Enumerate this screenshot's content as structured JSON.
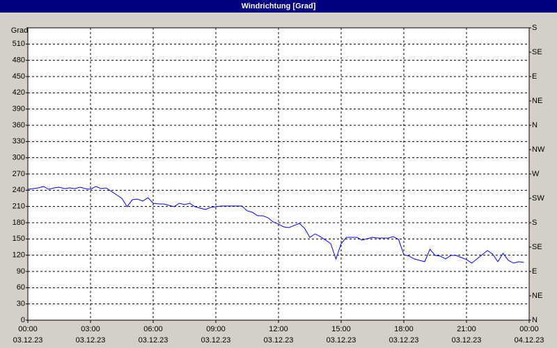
{
  "chart_data": {
    "type": "line",
    "title": "Windrichtung [Grad]",
    "ylabel": "Grad",
    "x": [
      0,
      0.25,
      0.5,
      0.75,
      1,
      1.25,
      1.5,
      1.75,
      2,
      2.25,
      2.5,
      2.75,
      3,
      3.25,
      3.5,
      3.75,
      4,
      4.25,
      4.5,
      4.75,
      5,
      5.25,
      5.5,
      5.75,
      6,
      6.25,
      6.5,
      6.75,
      7,
      7.25,
      7.5,
      7.75,
      8,
      8.25,
      8.5,
      8.75,
      9,
      9.25,
      9.5,
      9.75,
      10,
      10.25,
      10.5,
      10.75,
      11,
      11.25,
      11.5,
      11.75,
      12,
      12.25,
      12.5,
      12.75,
      13,
      13.25,
      13.5,
      13.75,
      14,
      14.25,
      14.5,
      14.75,
      15,
      15.25,
      15.5,
      15.75,
      16,
      16.25,
      16.5,
      16.75,
      17,
      17.25,
      17.5,
      17.75,
      18,
      18.25,
      18.5,
      18.75,
      19,
      19.25,
      19.5,
      19.75,
      20,
      20.25,
      20.5,
      20.75,
      21,
      21.25,
      21.5,
      21.75,
      22,
      22.25,
      22.5,
      22.75,
      23,
      23.25,
      23.5,
      23.75
    ],
    "values": [
      241.7,
      243,
      244.3,
      246.9,
      241.7,
      244.3,
      245.6,
      243,
      244.3,
      243,
      245.6,
      243,
      241.7,
      246.9,
      243,
      244.3,
      237.9,
      231.4,
      225,
      209.6,
      222.4,
      223.7,
      219.9,
      226.3,
      216,
      214.7,
      214.7,
      212.1,
      209.6,
      216,
      213.4,
      216,
      209.6,
      207,
      204.4,
      208.3,
      209.6,
      210.9,
      210.9,
      210.9,
      210.9,
      210.9,
      201.9,
      199.3,
      192.9,
      192.9,
      189,
      181.3,
      177.4,
      172.3,
      171,
      174.9,
      178.7,
      169.7,
      153,
      159.4,
      154.3,
      147.9,
      141.4,
      113.1,
      141.4,
      153,
      153,
      153,
      147.9,
      150.4,
      153,
      151.7,
      151.7,
      151.7,
      154.3,
      149.1,
      120.9,
      118.3,
      113.1,
      110.6,
      108,
      131.1,
      119.6,
      118.3,
      113.1,
      119.6,
      119.6,
      115.7,
      111.9,
      105.4,
      113.1,
      120.9,
      128.6,
      122.1,
      108,
      123.4,
      110.6,
      105.4,
      108,
      106.7
    ],
    "color": "#0000ff",
    "xlim": [
      0,
      24
    ],
    "xticks": [
      {
        "value": 0,
        "label": "00:00"
      },
      {
        "value": 3,
        "label": "03:00"
      },
      {
        "value": 6,
        "label": "06:00"
      },
      {
        "value": 9,
        "label": "09:00"
      },
      {
        "value": 12,
        "label": "12:00"
      },
      {
        "value": 15,
        "label": "15:00"
      },
      {
        "value": 18,
        "label": "18:00"
      },
      {
        "value": 21,
        "label": "21:00"
      },
      {
        "value": 24,
        "label": "00:00"
      }
    ],
    "xtick_dates": [
      "03.12.23",
      "03.12.23",
      "03.12.23",
      "03.12.23",
      "03.12.23",
      "03.12.23",
      "03.12.23",
      "03.12.23",
      "04.12.23"
    ],
    "ylim": [
      0,
      540
    ],
    "yticks": [
      0,
      30,
      60,
      90,
      120,
      150,
      180,
      210,
      240,
      270,
      300,
      330,
      360,
      390,
      420,
      450,
      480,
      510
    ],
    "y2lim": [
      0,
      540
    ],
    "y2ticks": [
      {
        "value": 0,
        "label": "N"
      },
      {
        "value": 45,
        "label": "NE"
      },
      {
        "value": 90,
        "label": "E"
      },
      {
        "value": 135,
        "label": "SE"
      },
      {
        "value": 180,
        "label": "S"
      },
      {
        "value": 225,
        "label": "SW"
      },
      {
        "value": 270,
        "label": "W"
      },
      {
        "value": 315,
        "label": "NW"
      },
      {
        "value": 360,
        "label": "N"
      },
      {
        "value": 405,
        "label": "NE"
      },
      {
        "value": 450,
        "label": "E"
      },
      {
        "value": 495,
        "label": "SE"
      },
      {
        "value": 540,
        "label": "S"
      }
    ],
    "grid": true
  }
}
